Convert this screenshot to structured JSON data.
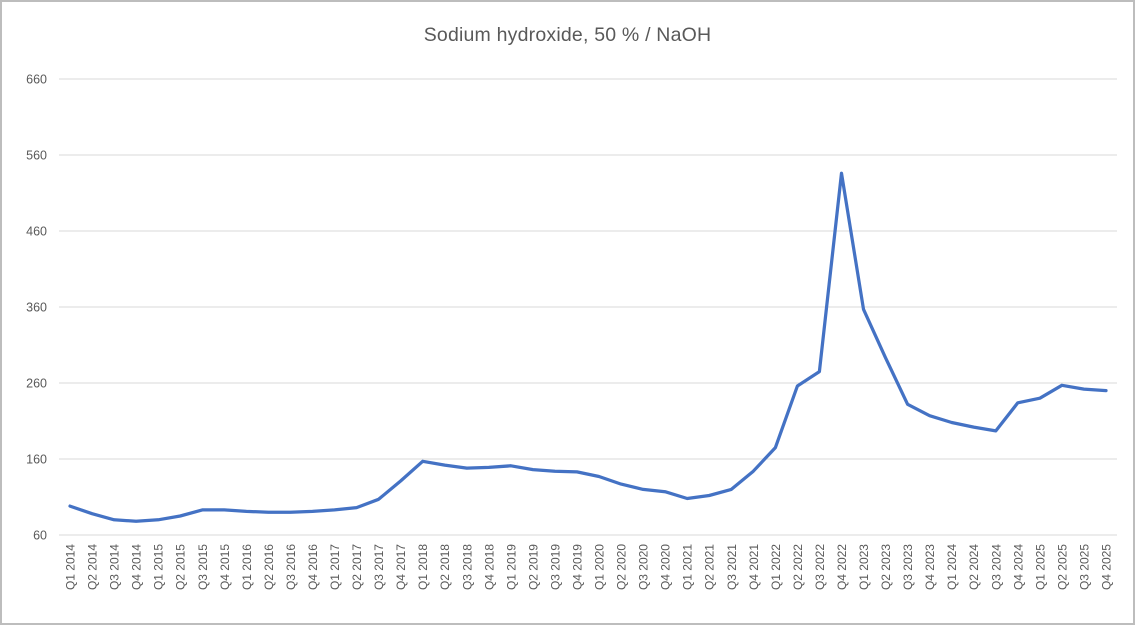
{
  "chart_data": {
    "type": "line",
    "title": "Sodium hydroxide, 50 % / NaOH",
    "categories": [
      "Q1 2014",
      "Q2 2014",
      "Q3 2014",
      "Q4 2014",
      "Q1 2015",
      "Q2 2015",
      "Q3 2015",
      "Q4 2015",
      "Q1 2016",
      "Q2 2016",
      "Q3 2016",
      "Q4 2016",
      "Q1 2017",
      "Q2 2017",
      "Q3 2017",
      "Q4 2017",
      "Q1 2018",
      "Q2 2018",
      "Q3 2018",
      "Q4 2018",
      "Q1 2019",
      "Q2 2019",
      "Q3 2019",
      "Q4 2019",
      "Q1 2020",
      "Q2 2020",
      "Q3 2020",
      "Q4 2020",
      "Q1 2021",
      "Q2 2021",
      "Q3 2021",
      "Q4 2021",
      "Q1 2022",
      "Q2 2022",
      "Q3 2022",
      "Q4 2022",
      "Q1 2023",
      "Q2 2023",
      "Q3 2023",
      "Q4 2023",
      "Q1 2024",
      "Q2 2024",
      "Q3 2024",
      "Q4 2024",
      "Q1 2025",
      "Q2 2025",
      "Q3 2025",
      "Q4 2025"
    ],
    "series": [
      {
        "name": "Sodium hydroxide, 50 % / NaOH",
        "values": [
          98,
          88,
          80,
          78,
          80,
          85,
          93,
          93,
          91,
          90,
          90,
          91,
          93,
          96,
          107,
          131,
          157,
          152,
          148,
          149,
          151,
          146,
          144,
          143,
          137,
          127,
          120,
          117,
          108,
          112,
          120,
          144,
          175,
          256,
          275,
          536,
          357,
          293,
          232,
          217,
          208,
          202,
          197,
          234,
          240,
          257,
          252,
          250
        ]
      }
    ],
    "xlabel": "",
    "ylabel": "",
    "ylim": [
      60,
      660
    ],
    "yticks": [
      60,
      160,
      260,
      360,
      460,
      560,
      660
    ],
    "grid": true,
    "legend_position": "none",
    "x_tick_rotation_degrees": 90
  },
  "colors": {
    "line": "#4472C4",
    "gridline": "#D9D9D9",
    "tick_label": "#595959",
    "title": "#595959",
    "background": "#FFFFFF",
    "frame_border": "#BDBDBD"
  }
}
